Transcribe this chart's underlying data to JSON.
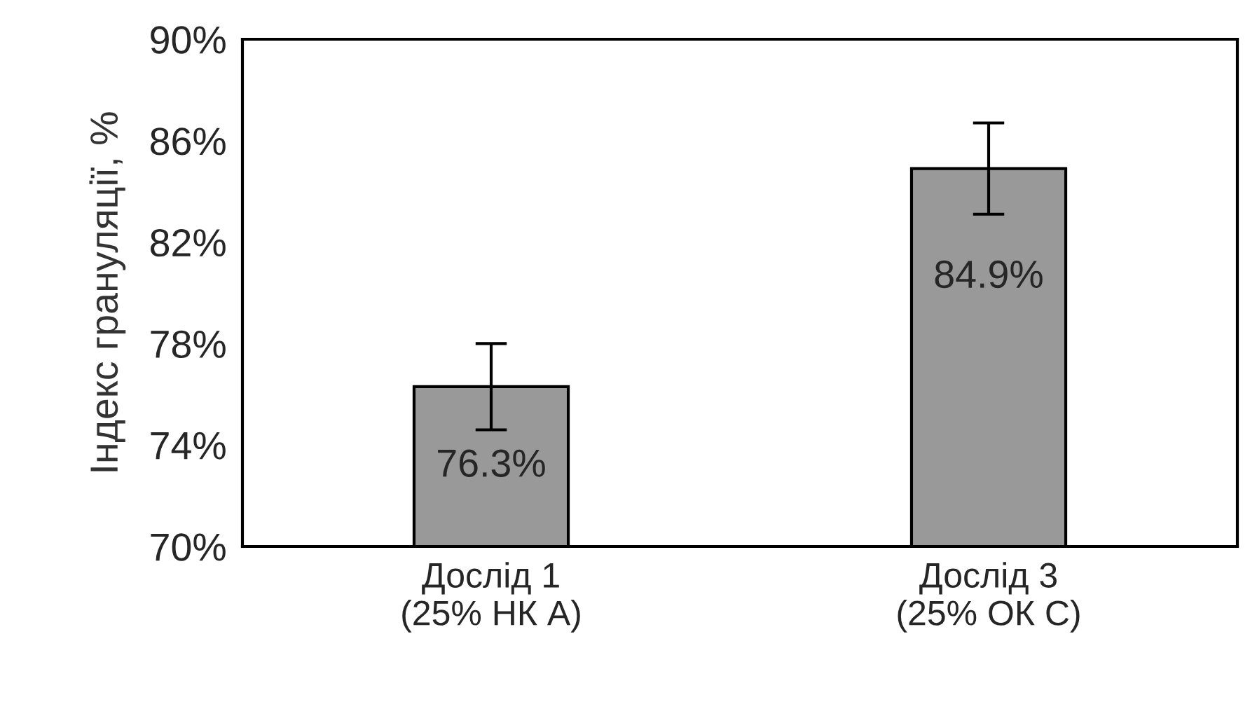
{
  "chart_data": {
    "type": "bar",
    "ylabel": "Індекс грануляції, %",
    "categories": [
      "Дослід 1\n(25% НК А)",
      "Дослід 3\n(25% ОК С)"
    ],
    "values": [
      76.3,
      84.9
    ],
    "color": "#999999",
    "errors": [
      1.7,
      1.8
    ],
    "value_labels": [
      "76.3%",
      "84.9%"
    ],
    "ylim": [
      70,
      90
    ],
    "yticks": [
      {
        "value": 70,
        "label": "70%"
      },
      {
        "value": 74,
        "label": "74%"
      },
      {
        "value": 78,
        "label": "78%"
      },
      {
        "value": 82,
        "label": "82%"
      },
      {
        "value": 86,
        "label": "86%"
      },
      {
        "value": 90,
        "label": "90%"
      }
    ],
    "grid": false,
    "legend": false
  }
}
